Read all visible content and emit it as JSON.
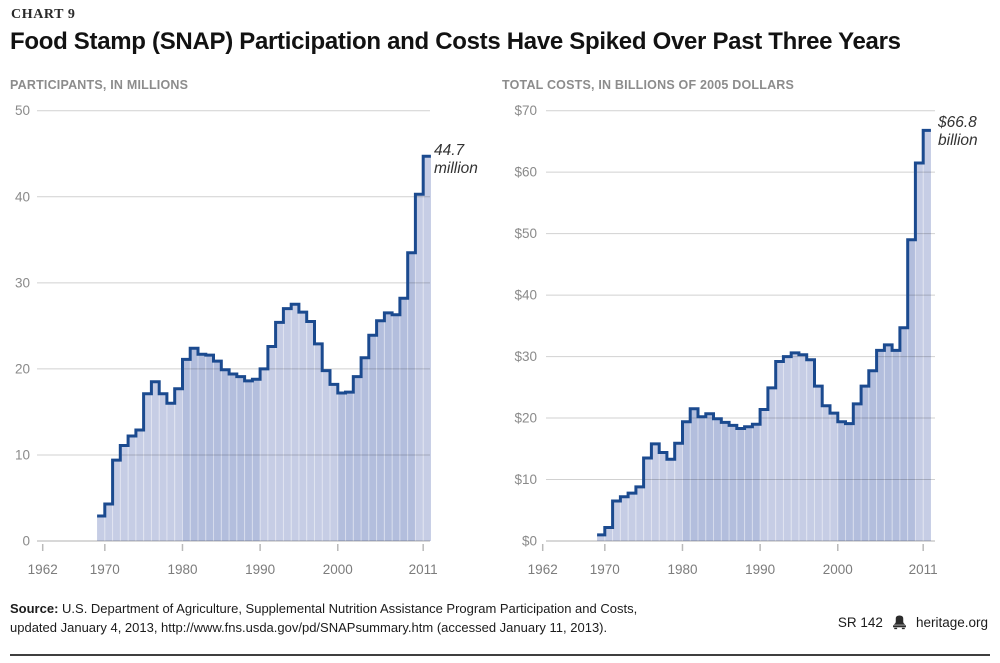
{
  "header": {
    "chart_number": "CHART 9",
    "title": "Food Stamp (SNAP) Participation and Costs Have Spiked Over Past Three Years"
  },
  "colors": {
    "line": "#1b4a8f",
    "fill_light": "#c6cde5",
    "fill_dark": "#b3bedd",
    "grid": "#cccccc",
    "axis_text_y": "#8a8a8a",
    "axis_text_x": "#7c7c7c",
    "annotation": "#333333"
  },
  "chart_data": [
    {
      "type": "area",
      "subtype": "step",
      "title": "PARTICIPANTS, IN MILLIONS",
      "xlabel": "",
      "ylabel": "Participants (millions)",
      "xlim": [
        1962,
        2012
      ],
      "ylim": [
        0,
        50
      ],
      "grid": "horizontal",
      "legend": "none",
      "annotation": "44.7 million",
      "annotation_lines": [
        "44.7",
        "million"
      ],
      "xticks": [
        1962,
        1970,
        1980,
        1990,
        2000,
        2011
      ],
      "yticks": [
        {
          "v": 0,
          "label": "0"
        },
        {
          "v": 10,
          "label": "10"
        },
        {
          "v": 20,
          "label": "20"
        },
        {
          "v": 30,
          "label": "30"
        },
        {
          "v": 40,
          "label": "40"
        },
        {
          "v": 50,
          "label": "50"
        }
      ],
      "years": [
        1969,
        1970,
        1971,
        1972,
        1973,
        1974,
        1975,
        1976,
        1977,
        1978,
        1979,
        1980,
        1981,
        1982,
        1983,
        1984,
        1985,
        1986,
        1987,
        1988,
        1989,
        1990,
        1991,
        1992,
        1993,
        1994,
        1995,
        1996,
        1997,
        1998,
        1999,
        2000,
        2001,
        2002,
        2003,
        2004,
        2005,
        2006,
        2007,
        2008,
        2009,
        2010,
        2011
      ],
      "values": [
        2.9,
        4.3,
        9.4,
        11.1,
        12.2,
        12.9,
        17.1,
        18.5,
        17.1,
        16.0,
        17.7,
        21.1,
        22.4,
        21.7,
        21.6,
        20.9,
        19.9,
        19.4,
        19.1,
        18.6,
        18.8,
        20.0,
        22.6,
        25.4,
        27.0,
        27.5,
        26.6,
        25.5,
        22.9,
        19.8,
        18.2,
        17.2,
        17.3,
        19.1,
        21.3,
        23.9,
        25.6,
        26.5,
        26.3,
        28.2,
        33.5,
        40.3,
        44.7
      ]
    },
    {
      "type": "area",
      "subtype": "step",
      "title": "TOTAL COSTS, IN BILLIONS OF 2005 DOLLARS",
      "xlabel": "",
      "ylabel": "Total costs (billions of 2005 dollars)",
      "xlim": [
        1962,
        2012
      ],
      "ylim": [
        0,
        70
      ],
      "grid": "horizontal",
      "legend": "none",
      "annotation": "$66.8 billion",
      "annotation_lines": [
        "$66.8",
        "billion"
      ],
      "xticks": [
        1962,
        1970,
        1980,
        1990,
        2000,
        2011
      ],
      "yticks": [
        {
          "v": 0,
          "label": "$0"
        },
        {
          "v": 10,
          "label": "$10"
        },
        {
          "v": 20,
          "label": "$20"
        },
        {
          "v": 30,
          "label": "$30"
        },
        {
          "v": 40,
          "label": "$40"
        },
        {
          "v": 50,
          "label": "$50"
        },
        {
          "v": 60,
          "label": "$60"
        },
        {
          "v": 70,
          "label": "$70"
        }
      ],
      "years": [
        1969,
        1970,
        1971,
        1972,
        1973,
        1974,
        1975,
        1976,
        1977,
        1978,
        1979,
        1980,
        1981,
        1982,
        1983,
        1984,
        1985,
        1986,
        1987,
        1988,
        1989,
        1990,
        1991,
        1992,
        1993,
        1994,
        1995,
        1996,
        1997,
        1998,
        1999,
        2000,
        2001,
        2002,
        2003,
        2004,
        2005,
        2006,
        2007,
        2008,
        2009,
        2010,
        2011
      ],
      "values": [
        1.0,
        2.2,
        6.5,
        7.2,
        7.8,
        8.8,
        13.5,
        15.8,
        14.4,
        13.3,
        15.9,
        19.4,
        21.5,
        20.2,
        20.7,
        19.9,
        19.3,
        18.8,
        18.3,
        18.6,
        19.0,
        21.4,
        24.9,
        29.2,
        30.0,
        30.6,
        30.3,
        29.5,
        25.2,
        22.0,
        20.8,
        19.4,
        19.1,
        22.3,
        25.2,
        27.7,
        31.0,
        31.9,
        31.0,
        34.7,
        49.0,
        61.5,
        66.8
      ]
    }
  ],
  "footer": {
    "source_label": "Source:",
    "source_line1": " U.S. Department of Agriculture, Supplemental Nutrition Assistance Program Participation and Costs,",
    "source_line2": "updated January 4, 2013, http://www.fns.usda.gov/pd/SNAPsummary.htm (accessed January 11, 2013).",
    "report_number": "SR 142",
    "site": "heritage.org"
  }
}
